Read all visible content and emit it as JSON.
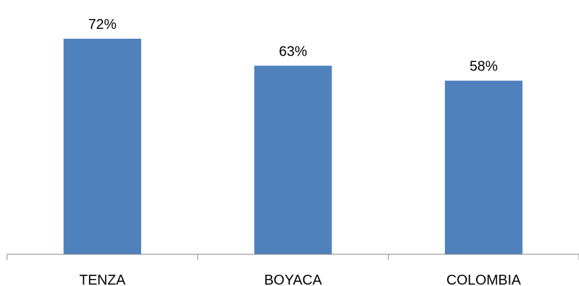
{
  "chart_data": {
    "type": "bar",
    "categories": [
      "TENZA",
      "BOYACA",
      "COLOMBIA"
    ],
    "values": [
      72,
      63,
      58
    ],
    "data_labels": [
      "72%",
      "63%",
      "58%"
    ],
    "ylim": [
      0,
      80
    ],
    "grid": false,
    "legend": "none",
    "bar_color": "#4F81BD",
    "axis_color": "#868686"
  }
}
